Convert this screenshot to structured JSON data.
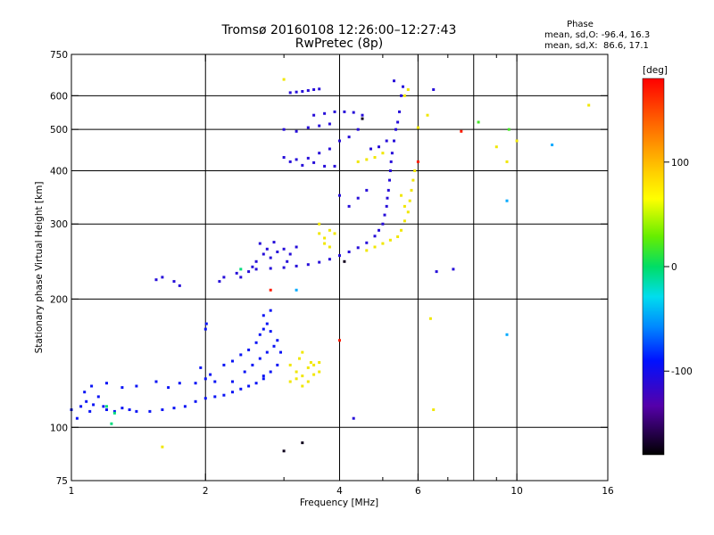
{
  "header": {
    "title_line1": "Tromsø 20160108 12:26:00–12:27:43",
    "title_line2": "RwPretec (8p)",
    "phase_title": "Phase",
    "phase_o": "mean, sd,O: -96.4, 16.3",
    "phase_x": "mean, sd,X:  86.6, 17.1"
  },
  "chart_data": {
    "type": "scatter",
    "xlabel": "Frequency [MHz]",
    "ylabel": "Stationary phase Virtual Height [km]",
    "xscale": "log",
    "yscale": "log",
    "xlim": [
      1,
      16
    ],
    "ylim": [
      75,
      750
    ],
    "xticks": [
      1,
      2,
      4,
      6,
      10,
      16
    ],
    "yticks": [
      75,
      100,
      200,
      300,
      400,
      500,
      600,
      750
    ],
    "grid_x": [
      2,
      4,
      6,
      8,
      10
    ],
    "grid_y": [
      100,
      200,
      300,
      400,
      500,
      600
    ],
    "minor_x": [
      3,
      5,
      7,
      9
    ],
    "colorbar": {
      "label": "[deg]",
      "range": [
        -180,
        180
      ],
      "ticks": [
        100,
        0,
        -100
      ]
    },
    "series": [
      {
        "phase": -110,
        "points": [
          [
            1.0,
            110
          ],
          [
            1.03,
            105
          ],
          [
            1.05,
            112
          ],
          [
            1.08,
            115
          ],
          [
            1.1,
            109
          ],
          [
            1.12,
            113
          ],
          [
            1.15,
            118
          ],
          [
            1.18,
            112
          ],
          [
            1.2,
            110
          ],
          [
            1.25,
            109
          ],
          [
            1.3,
            111
          ],
          [
            1.35,
            110
          ],
          [
            1.4,
            109
          ],
          [
            1.5,
            109
          ],
          [
            1.6,
            110
          ],
          [
            1.7,
            111
          ],
          [
            1.8,
            112
          ],
          [
            1.9,
            115
          ],
          [
            2.0,
            117
          ],
          [
            2.1,
            118
          ],
          [
            2.2,
            119
          ],
          [
            2.3,
            121
          ],
          [
            2.4,
            123
          ],
          [
            2.5,
            125
          ],
          [
            2.6,
            127
          ],
          [
            2.7,
            130
          ],
          [
            2.8,
            135
          ],
          [
            2.9,
            140
          ],
          [
            1.07,
            121
          ],
          [
            1.11,
            125
          ],
          [
            1.2,
            127
          ],
          [
            1.3,
            124
          ],
          [
            1.4,
            125
          ],
          [
            1.55,
            128
          ],
          [
            1.65,
            124
          ],
          [
            1.75,
            127
          ],
          [
            1.9,
            127
          ],
          [
            2.0,
            130
          ],
          [
            2.05,
            133
          ],
          [
            2.1,
            128
          ],
          [
            1.95,
            138
          ],
          [
            2.2,
            140
          ],
          [
            2.3,
            143
          ],
          [
            2.4,
            148
          ],
          [
            2.5,
            152
          ],
          [
            2.6,
            158
          ],
          [
            2.65,
            165
          ],
          [
            2.7,
            170
          ],
          [
            2.75,
            175
          ],
          [
            2.8,
            168
          ],
          [
            2.9,
            160
          ],
          [
            2.95,
            150
          ],
          [
            2.55,
            140
          ],
          [
            2.65,
            145
          ],
          [
            2.75,
            150
          ],
          [
            2.85,
            155
          ],
          [
            2.0,
            170
          ],
          [
            2.01,
            175
          ],
          [
            2.7,
            183
          ],
          [
            2.8,
            188
          ],
          [
            2.3,
            128
          ],
          [
            2.45,
            135
          ],
          [
            2.7,
            132
          ]
        ]
      },
      {
        "phase": -125,
        "points": [
          [
            2.6,
            235
          ],
          [
            2.8,
            236
          ],
          [
            3.0,
            237
          ],
          [
            3.2,
            239
          ],
          [
            3.4,
            241
          ],
          [
            3.6,
            244
          ],
          [
            3.8,
            248
          ],
          [
            4.0,
            253
          ],
          [
            4.2,
            258
          ],
          [
            4.4,
            264
          ],
          [
            4.6,
            271
          ],
          [
            4.8,
            281
          ],
          [
            4.9,
            290
          ],
          [
            5.0,
            300
          ],
          [
            5.05,
            315
          ],
          [
            5.1,
            330
          ],
          [
            5.12,
            345
          ],
          [
            5.15,
            360
          ],
          [
            5.18,
            380
          ],
          [
            5.2,
            400
          ],
          [
            5.22,
            420
          ],
          [
            5.25,
            440
          ],
          [
            5.3,
            470
          ],
          [
            5.35,
            500
          ],
          [
            5.4,
            520
          ],
          [
            5.45,
            550
          ],
          [
            5.5,
            600
          ],
          [
            5.55,
            630
          ],
          [
            2.5,
            232
          ],
          [
            2.55,
            238
          ],
          [
            2.6,
            245
          ],
          [
            2.7,
            255
          ],
          [
            2.75,
            262
          ],
          [
            2.8,
            250
          ],
          [
            2.9,
            258
          ],
          [
            3.0,
            262
          ],
          [
            3.1,
            255
          ],
          [
            3.2,
            265
          ],
          [
            2.65,
            270
          ],
          [
            2.85,
            272
          ],
          [
            3.05,
            245
          ],
          [
            2.4,
            225
          ],
          [
            2.35,
            230
          ],
          [
            2.2,
            225
          ],
          [
            2.15,
            220
          ],
          [
            1.55,
            222
          ],
          [
            1.6,
            225
          ],
          [
            1.7,
            220
          ],
          [
            1.75,
            215
          ],
          [
            3.1,
            610
          ],
          [
            3.2,
            612
          ],
          [
            3.3,
            614
          ],
          [
            3.4,
            617
          ],
          [
            3.5,
            620
          ],
          [
            3.6,
            622
          ],
          [
            3.0,
            500
          ],
          [
            3.2,
            495
          ],
          [
            3.4,
            505
          ],
          [
            3.6,
            510
          ],
          [
            3.8,
            515
          ],
          [
            3.0,
            430
          ],
          [
            3.2,
            425
          ],
          [
            3.4,
            428
          ],
          [
            3.6,
            440
          ],
          [
            3.8,
            450
          ],
          [
            4.0,
            470
          ],
          [
            4.2,
            480
          ],
          [
            4.4,
            500
          ],
          [
            3.5,
            540
          ],
          [
            3.7,
            545
          ],
          [
            3.9,
            550
          ],
          [
            4.1,
            550
          ],
          [
            4.3,
            548
          ],
          [
            4.5,
            540
          ],
          [
            3.1,
            420
          ],
          [
            3.3,
            412
          ],
          [
            3.5,
            418
          ],
          [
            3.7,
            410
          ],
          [
            4.7,
            450
          ],
          [
            4.9,
            455
          ],
          [
            5.1,
            470
          ],
          [
            4.0,
            350
          ],
          [
            4.2,
            330
          ],
          [
            4.4,
            345
          ],
          [
            4.6,
            360
          ],
          [
            5.3,
            650
          ],
          [
            6.5,
            620
          ],
          [
            6.6,
            232
          ],
          [
            7.2,
            235
          ],
          [
            3.9,
            410
          ],
          [
            4.3,
            105
          ]
        ]
      },
      {
        "phase": 95,
        "points": [
          [
            3.1,
            140
          ],
          [
            3.2,
            135
          ],
          [
            3.3,
            132
          ],
          [
            3.4,
            138
          ],
          [
            3.5,
            140
          ],
          [
            3.2,
            130
          ],
          [
            3.3,
            125
          ],
          [
            3.4,
            128
          ],
          [
            3.5,
            133
          ],
          [
            3.6,
            135
          ],
          [
            3.1,
            128
          ],
          [
            3.25,
            145
          ],
          [
            3.45,
            142
          ],
          [
            3.3,
            150
          ],
          [
            3.6,
            142
          ],
          [
            3.6,
            285
          ],
          [
            3.7,
            278
          ],
          [
            3.8,
            290
          ],
          [
            3.9,
            285
          ],
          [
            3.7,
            270
          ],
          [
            3.8,
            265
          ],
          [
            3.6,
            300
          ],
          [
            4.6,
            260
          ],
          [
            4.8,
            265
          ],
          [
            5.0,
            270
          ],
          [
            5.2,
            275
          ],
          [
            5.4,
            280
          ],
          [
            5.5,
            290
          ],
          [
            5.6,
            305
          ],
          [
            5.7,
            320
          ],
          [
            5.75,
            340
          ],
          [
            5.8,
            360
          ],
          [
            5.85,
            380
          ],
          [
            5.9,
            400
          ],
          [
            5.6,
            330
          ],
          [
            5.5,
            350
          ],
          [
            4.4,
            420
          ],
          [
            4.6,
            425
          ],
          [
            4.8,
            430
          ],
          [
            5.0,
            440
          ],
          [
            5.6,
            600
          ],
          [
            5.7,
            620
          ],
          [
            6.4,
            180
          ],
          [
            6.5,
            110
          ],
          [
            6.0,
            505
          ],
          [
            6.3,
            540
          ],
          [
            9.0,
            455
          ],
          [
            9.5,
            420
          ],
          [
            10.0,
            470
          ],
          [
            14.5,
            570
          ],
          [
            3.0,
            655
          ],
          [
            1.6,
            90
          ]
        ]
      },
      {
        "phase": 170,
        "points": [
          [
            4.0,
            160
          ],
          [
            2.8,
            210
          ],
          [
            6.0,
            420
          ],
          [
            7.5,
            495
          ]
        ]
      },
      {
        "phase": 10,
        "points": [
          [
            1.2,
            112
          ],
          [
            1.25,
            108
          ],
          [
            1.23,
            102
          ],
          [
            2.4,
            235
          ]
        ]
      },
      {
        "phase": 40,
        "points": [
          [
            8.2,
            520
          ],
          [
            9.6,
            500
          ]
        ]
      },
      {
        "phase": -30,
        "points": [
          [
            9.5,
            165
          ],
          [
            3.2,
            210
          ],
          [
            9.5,
            340
          ],
          [
            12.0,
            460
          ]
        ]
      },
      {
        "phase": -175,
        "points": [
          [
            3.0,
            88
          ],
          [
            3.3,
            92
          ],
          [
            4.1,
            245
          ],
          [
            4.5,
            530
          ]
        ]
      }
    ]
  }
}
